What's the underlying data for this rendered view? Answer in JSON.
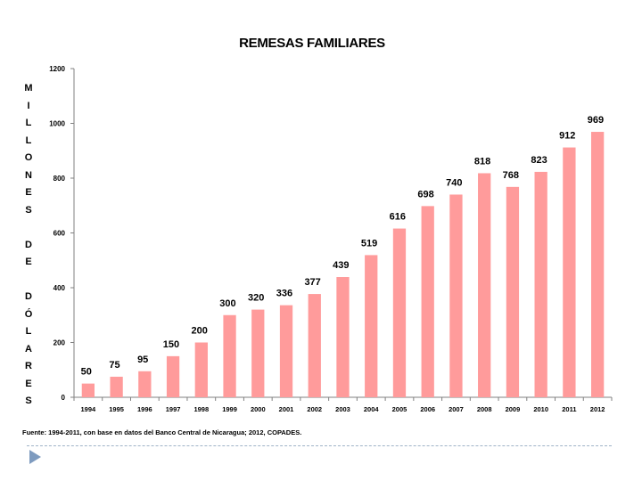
{
  "slide": {
    "source_note": "Fuente: 1994-2011, con base en datos del Banco Central de Nicaragua; 2012, COPADES."
  },
  "chart_data": {
    "type": "bar",
    "title": "REMESAS FAMILIARES",
    "ylabel": "MILLONES DE DÓLARES",
    "ylabel_lines": [
      "MILLONES",
      "DE",
      "DÓLARES"
    ],
    "categories": [
      "1994",
      "1995",
      "1996",
      "1997",
      "1998",
      "1999",
      "2000",
      "2001",
      "2002",
      "2003",
      "2004",
      "2005",
      "2006",
      "2007",
      "2008",
      "2009",
      "2010",
      "2011",
      "2012"
    ],
    "values": [
      50,
      75,
      95,
      150,
      200,
      300,
      320,
      336,
      377,
      439,
      519,
      616,
      698,
      740,
      818,
      768,
      823,
      912,
      969
    ],
    "ylim": [
      0,
      1200
    ],
    "yticks": [
      0,
      200,
      400,
      600,
      800,
      1000,
      1200
    ],
    "grid": false,
    "legend": "none",
    "colors": {
      "bar": "#ff9b9b",
      "axis": "#808080",
      "text": "#000000"
    }
  }
}
